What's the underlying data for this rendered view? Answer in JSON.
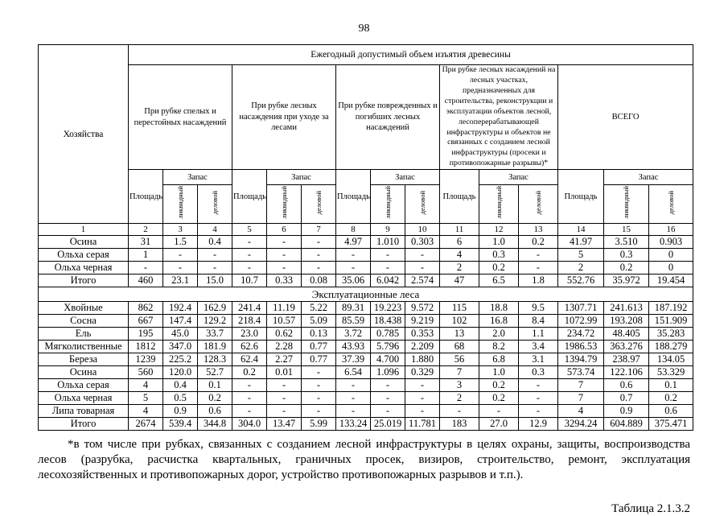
{
  "page": {
    "number": "98",
    "table_label": "Таблица 2.1.3.2"
  },
  "footnote": {
    "text": "*в том числе при рубках, связанных с созданием лесной инфраструктуры в целях охраны, защиты, воспроизводства лесов (разрубка, расчистка квартальных, граничных просек, визиров, строительство, ремонт, эксплуатация лесохозяйственных и противопожарных дорог, устройство противопожарных разрывов и т.п.)."
  },
  "table": {
    "row_axis_header": "Хозяйства",
    "top_header": "Ежегодный допустимый объем изъятия древесины",
    "groups": [
      "При рубке спелых и перестойных насаждений",
      "При рубке лесных насаждения при уходе за лесами",
      "При рубке поврежденных и погибших лесных насаждений",
      "При рубке лесных насаждений на лесных участках, предназначенных для строительства, реконструкции и эксплуатации объектов лесной, лесоперерабатывающей инфраструктуры и объектов не связанных с созданием лесной инфраструктуры (просеки и противопожарные разрывы)*",
      "ВСЕГО"
    ],
    "sub": {
      "area": "Площадь",
      "stock": "Запас",
      "liquid": "ликвидный",
      "business": "деловой"
    },
    "col_numbers": [
      "1",
      "2",
      "3",
      "4",
      "5",
      "6",
      "7",
      "8",
      "9",
      "10",
      "11",
      "12",
      "13",
      "14",
      "15",
      "16"
    ],
    "rows": [
      {
        "label": "Осина",
        "align": "left",
        "values": [
          "31",
          "1.5",
          "0.4",
          "-",
          "-",
          "-",
          "4.97",
          "1.010",
          "0.303",
          "6",
          "1.0",
          "0.2",
          "41.97",
          "3.510",
          "0.903"
        ]
      },
      {
        "label": "Ольха серая",
        "align": "left",
        "values": [
          "1",
          "-",
          "-",
          "-",
          "-",
          "-",
          "-",
          "-",
          "-",
          "4",
          "0.3",
          "-",
          "5",
          "0.3",
          "0"
        ]
      },
      {
        "label": "Ольха черная",
        "align": "left",
        "values": [
          "-",
          "-",
          "-",
          "-",
          "-",
          "-",
          "-",
          "-",
          "-",
          "2",
          "0.2",
          "-",
          "2",
          "0.2",
          "0"
        ]
      },
      {
        "label": "Итого",
        "align": "center",
        "values": [
          "460",
          "23.1",
          "15.0",
          "10.7",
          "0.33",
          "0.08",
          "35.06",
          "6.042",
          "2.574",
          "47",
          "6.5",
          "1.8",
          "552.76",
          "35.972",
          "19.454"
        ]
      },
      {
        "section": "Эксплуатационные леса"
      },
      {
        "label": "Хвойные",
        "align": "left",
        "values": [
          "862",
          "192.4",
          "162.9",
          "241.4",
          "11.19",
          "5.22",
          "89.31",
          "19.223",
          "9.572",
          "115",
          "18.8",
          "9.5",
          "1307.71",
          "241.613",
          "187.192"
        ]
      },
      {
        "label": "Сосна",
        "align": "left",
        "values": [
          "667",
          "147.4",
          "129.2",
          "218.4",
          "10.57",
          "5.09",
          "85.59",
          "18.438",
          "9.219",
          "102",
          "16.8",
          "8.4",
          "1072.99",
          "193.208",
          "151.909"
        ]
      },
      {
        "label": "Ель",
        "align": "left",
        "values": [
          "195",
          "45.0",
          "33.7",
          "23.0",
          "0.62",
          "0.13",
          "3.72",
          "0.785",
          "0.353",
          "13",
          "2.0",
          "1.1",
          "234.72",
          "48.405",
          "35.283"
        ]
      },
      {
        "label": "Мягколиственные",
        "align": "left",
        "values": [
          "1812",
          "347.0",
          "181.9",
          "62.6",
          "2.28",
          "0.77",
          "43.93",
          "5.796",
          "2.209",
          "68",
          "8.2",
          "3.4",
          "1986.53",
          "363.276",
          "188.279"
        ]
      },
      {
        "label": "Береза",
        "align": "left",
        "values": [
          "1239",
          "225.2",
          "128.3",
          "62.4",
          "2.27",
          "0.77",
          "37.39",
          "4.700",
          "1.880",
          "56",
          "6.8",
          "3.1",
          "1394.79",
          "238.97",
          "134.05"
        ]
      },
      {
        "label": "Осина",
        "align": "left",
        "values": [
          "560",
          "120.0",
          "52.7",
          "0.2",
          "0.01",
          "-",
          "6.54",
          "1.096",
          "0.329",
          "7",
          "1.0",
          "0.3",
          "573.74",
          "122.106",
          "53.329"
        ]
      },
      {
        "label": "Ольха серая",
        "align": "left",
        "values": [
          "4",
          "0.4",
          "0.1",
          "-",
          "-",
          "-",
          "-",
          "-",
          "-",
          "3",
          "0.2",
          "-",
          "7",
          "0.6",
          "0.1"
        ]
      },
      {
        "label": "Ольха черная",
        "align": "left",
        "values": [
          "5",
          "0.5",
          "0.2",
          "-",
          "-",
          "-",
          "-",
          "-",
          "-",
          "2",
          "0.2",
          "-",
          "7",
          "0.7",
          "0.2"
        ]
      },
      {
        "label": "Липа товарная",
        "align": "left",
        "values": [
          "4",
          "0.9",
          "0.6",
          "-",
          "-",
          "-",
          "-",
          "-",
          "-",
          "-",
          "-",
          "-",
          "4",
          "0.9",
          "0.6"
        ]
      },
      {
        "label": "Итого",
        "align": "left",
        "values": [
          "2674",
          "539.4",
          "344.8",
          "304.0",
          "13.47",
          "5.99",
          "133.24",
          "25.019",
          "11.781",
          "183",
          "27.0",
          "12.9",
          "3294.24",
          "604.889",
          "375.471"
        ]
      }
    ]
  }
}
